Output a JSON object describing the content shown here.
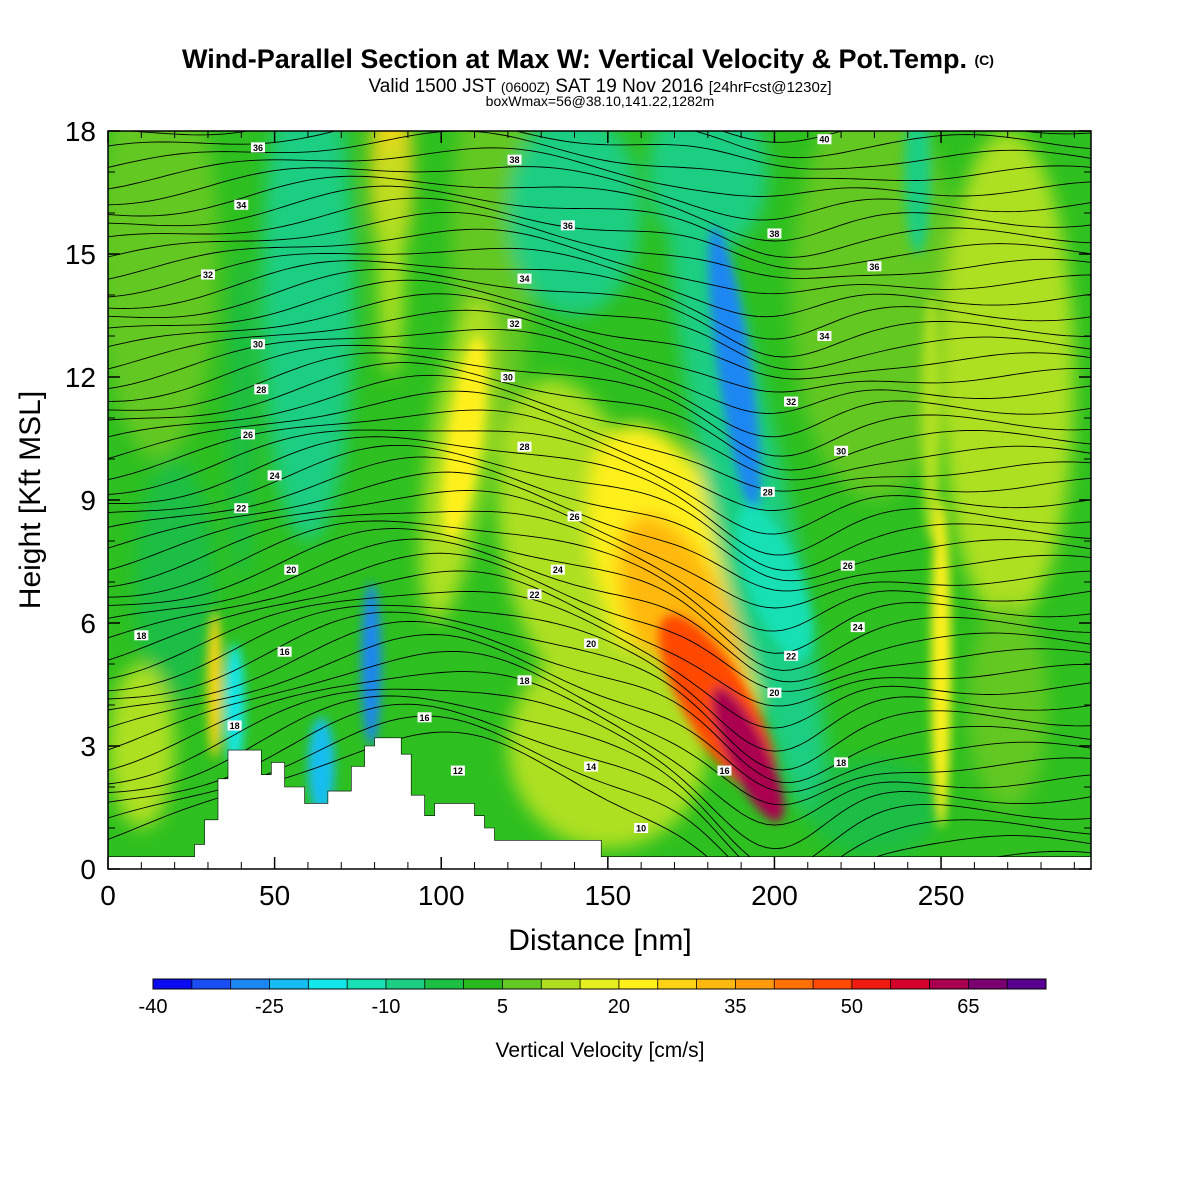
{
  "chart_data": {
    "type": "heatmap",
    "title": "Wind-Parallel Section at Max W: Vertical Velocity & Pot.Temp.",
    "title_mark": "(C)",
    "subtitle_parts": [
      "Valid 1500 JST",
      "(0600Z)",
      "SAT 19 Nov 2016",
      "[24hrFcst@1230z]"
    ],
    "subtitle2": "boxWmax=56@38.10,141.22,1282m",
    "xlabel": "Distance [nm]",
    "ylabel": "Height [Kft MSL]",
    "xlim": [
      0,
      295
    ],
    "ylim": [
      0,
      18
    ],
    "xticks": [
      0,
      50,
      100,
      150,
      200,
      250
    ],
    "yticks": [
      0,
      3,
      6,
      9,
      12,
      15,
      18
    ],
    "colorbar": {
      "label": "Vertical Velocity [cm/s]",
      "tick_labels": [
        "-40",
        "-25",
        "-10",
        "5",
        "20",
        "35",
        "50",
        "65"
      ],
      "colors": [
        "#0b0bf0",
        "#1a4ef5",
        "#1c86f3",
        "#16bdf2",
        "#12e6ea",
        "#18e0b4",
        "#1cce82",
        "#1cbe44",
        "#2aba20",
        "#64c824",
        "#aee020",
        "#e6f01e",
        "#fff01a",
        "#ffd414",
        "#ffb80e",
        "#ff9a0a",
        "#ff7006",
        "#ff4a04",
        "#f01a10",
        "#d4002a",
        "#aa0050",
        "#7a0070",
        "#5a0090"
      ]
    },
    "theta_contour_labels": [
      "10",
      "12",
      "14",
      "16",
      "18",
      "20",
      "22",
      "24",
      "26",
      "28",
      "30",
      "32",
      "34",
      "36",
      "38",
      "40"
    ],
    "features": [
      {
        "kind": "updraft_max",
        "x": 192,
        "y": 2.8,
        "w": 65
      },
      {
        "kind": "updraft",
        "x": 170,
        "y": 6,
        "w": 35
      },
      {
        "kind": "updraft",
        "x": 105,
        "y": 11,
        "w": 18
      },
      {
        "kind": "downdraft",
        "x": 188,
        "y": 12,
        "w": -32
      },
      {
        "kind": "downdraft",
        "x": 79,
        "y": 5,
        "w": -30
      },
      {
        "kind": "updraft",
        "x": 32,
        "y": 4.5,
        "w": 25
      },
      {
        "kind": "updraft",
        "x": 250,
        "y": 5,
        "w": 22
      }
    ],
    "terrain": [
      [
        0,
        0.3
      ],
      [
        26,
        0.3
      ],
      [
        26,
        0.6
      ],
      [
        29,
        0.6
      ],
      [
        29,
        1.2
      ],
      [
        33,
        1.2
      ],
      [
        33,
        2.2
      ],
      [
        36,
        2.2
      ],
      [
        36,
        2.9
      ],
      [
        46,
        2.9
      ],
      [
        46,
        2.3
      ],
      [
        49,
        2.3
      ],
      [
        49,
        2.6
      ],
      [
        53,
        2.6
      ],
      [
        53,
        2.0
      ],
      [
        59,
        2.0
      ],
      [
        59,
        1.6
      ],
      [
        66,
        1.6
      ],
      [
        66,
        1.9
      ],
      [
        73,
        1.9
      ],
      [
        73,
        2.5
      ],
      [
        77,
        2.5
      ],
      [
        77,
        3.0
      ],
      [
        80,
        3.0
      ],
      [
        80,
        3.2
      ],
      [
        88,
        3.2
      ],
      [
        88,
        2.8
      ],
      [
        91,
        2.8
      ],
      [
        91,
        1.8
      ],
      [
        95,
        1.8
      ],
      [
        95,
        1.3
      ],
      [
        98,
        1.3
      ],
      [
        98,
        1.6
      ],
      [
        110,
        1.6
      ],
      [
        110,
        1.3
      ],
      [
        113,
        1.3
      ],
      [
        113,
        1.0
      ],
      [
        116,
        1.0
      ],
      [
        116,
        0.7
      ],
      [
        148,
        0.7
      ],
      [
        148,
        0.3
      ],
      [
        295,
        0.3
      ]
    ]
  }
}
